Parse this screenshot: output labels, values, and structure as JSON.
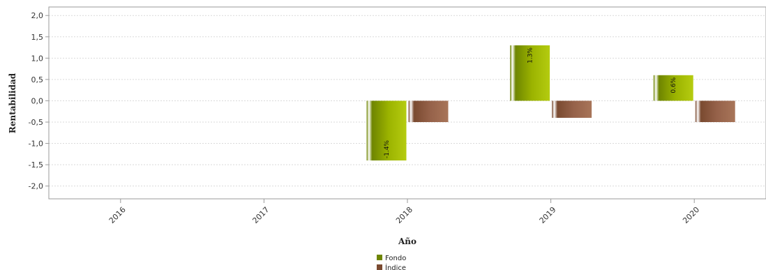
{
  "chart_data": {
    "type": "bar",
    "categories": [
      "2016",
      "2017",
      "2018",
      "2019",
      "2020"
    ],
    "series": [
      {
        "name": "Fondo",
        "values": [
          null,
          null,
          -1.4,
          1.3,
          0.6
        ],
        "labels": [
          "",
          "",
          "-1.4%",
          "1.3%",
          "0.6%"
        ],
        "color": "#8fa800"
      },
      {
        "name": "Índice",
        "values": [
          null,
          null,
          -0.5,
          -0.4,
          -0.5
        ],
        "labels": [
          "",
          "",
          "",
          "",
          ""
        ],
        "color": "#8b5a3c"
      }
    ],
    "xlabel": "Año",
    "ylabel": "Rentabilidad",
    "ylim": [
      -2.3,
      2.2
    ],
    "yticks": [
      2.0,
      1.5,
      1.0,
      0.5,
      0.0,
      -0.5,
      -1.0,
      -1.5,
      -2.0
    ],
    "ytick_labels": [
      "2,0",
      "1,5",
      "1,0",
      "0,5",
      "0,0",
      "-0,5",
      "-1,0",
      "-1,5",
      "-2,0"
    ],
    "grid": true,
    "legend": "bottom-center"
  }
}
